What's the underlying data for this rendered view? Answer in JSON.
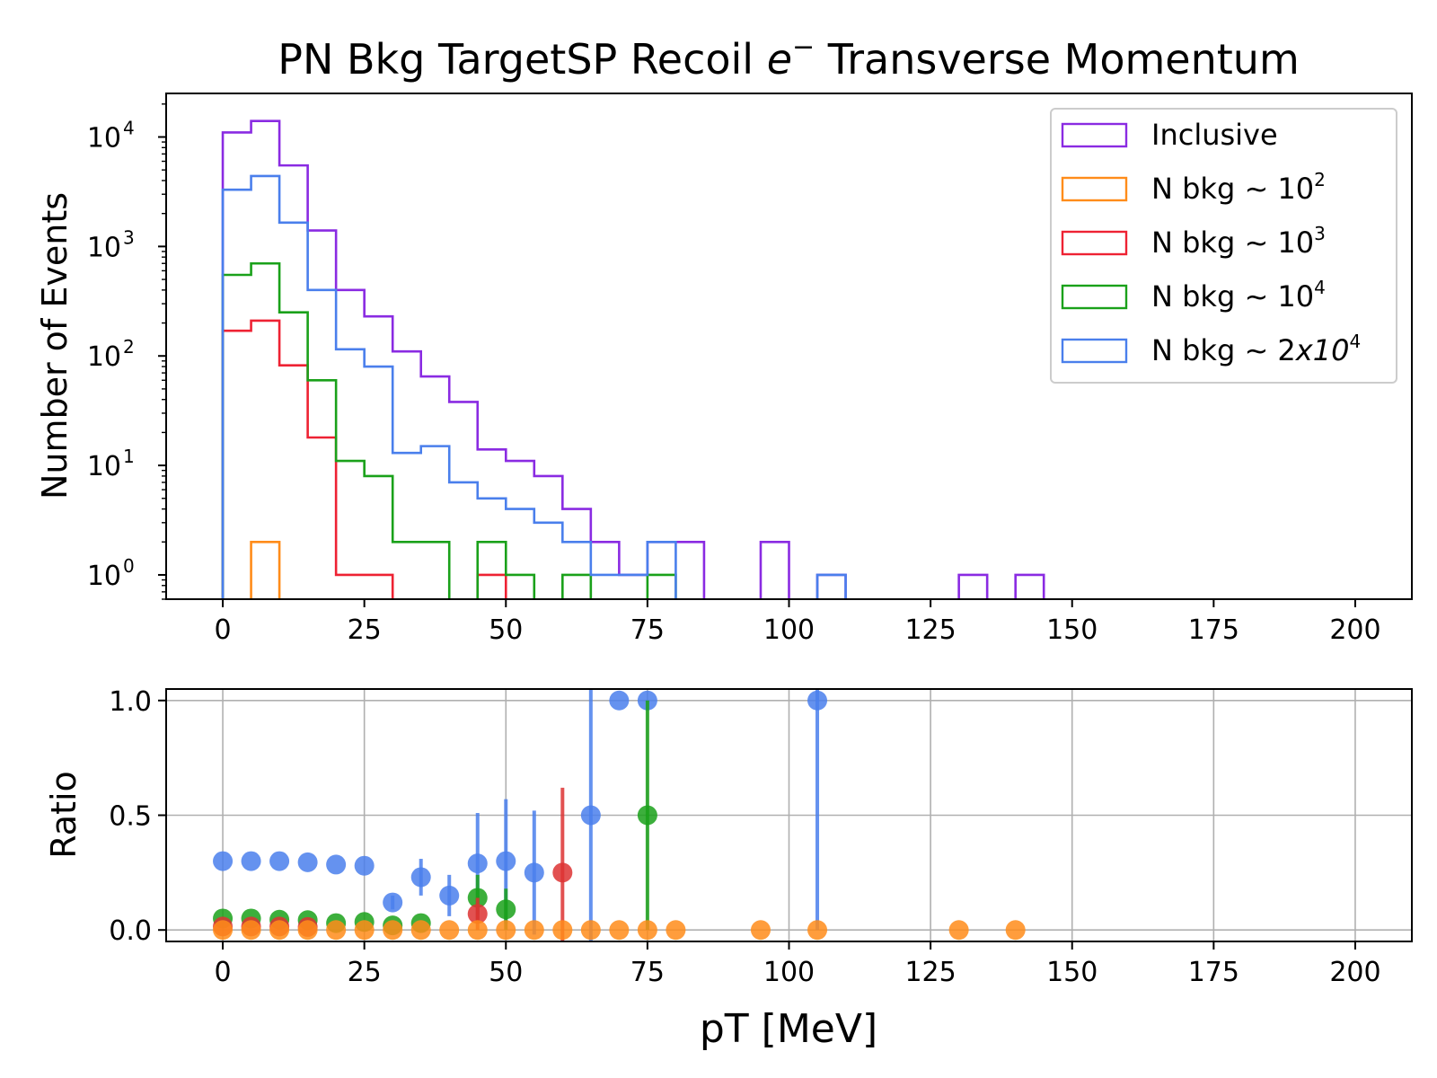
{
  "chart_data": [
    {
      "type": "histogram",
      "title_prefix": "PN Bkg TargetSP Recoil ",
      "title_symbol": "e",
      "title_sup": "−",
      "title_suffix": " Transverse Momentum",
      "xlabel": "",
      "ylabel": "Number of Events",
      "yscale": "log",
      "xlim": [
        -10,
        210
      ],
      "ylim": [
        0.6,
        25000
      ],
      "bin_width": 5,
      "x_ticks": [
        0,
        25,
        50,
        75,
        100,
        125,
        150,
        175,
        200
      ],
      "x_tick_labels": [
        "0",
        "25",
        "50",
        "75",
        "100",
        "125",
        "150",
        "175",
        "200"
      ],
      "y_ticks": [
        1,
        10,
        100,
        1000,
        10000
      ],
      "y_tick_labels": [
        {
          "base": "10",
          "exp": "0"
        },
        {
          "base": "10",
          "exp": "1"
        },
        {
          "base": "10",
          "exp": "2"
        },
        {
          "base": "10",
          "exp": "3"
        },
        {
          "base": "10",
          "exp": "4"
        }
      ],
      "legend_position": "top-right",
      "series": [
        {
          "key": "inclusive",
          "color": "#8a2be2",
          "label_text": "Inclusive",
          "label_sup": "",
          "label_tail": "",
          "bins": [
            [
              0,
              11000
            ],
            [
              5,
              14000
            ],
            [
              10,
              5500
            ],
            [
              15,
              1400
            ],
            [
              20,
              400
            ],
            [
              25,
              230
            ],
            [
              30,
              110
            ],
            [
              35,
              65
            ],
            [
              40,
              38
            ],
            [
              45,
              14
            ],
            [
              50,
              11
            ],
            [
              55,
              8
            ],
            [
              60,
              4
            ],
            [
              65,
              2
            ],
            [
              70,
              1
            ],
            [
              75,
              2
            ],
            [
              80,
              2
            ],
            [
              85,
              0
            ],
            [
              90,
              0
            ],
            [
              95,
              2
            ],
            [
              100,
              0
            ],
            [
              105,
              1
            ],
            [
              110,
              0
            ],
            [
              115,
              0
            ],
            [
              120,
              0
            ],
            [
              125,
              0
            ],
            [
              130,
              1
            ],
            [
              135,
              0
            ],
            [
              140,
              1
            ]
          ]
        },
        {
          "key": "n2",
          "color": "#ff8c1a",
          "label_text": "N bkg ~ 10",
          "label_sup": "2",
          "label_tail": "",
          "bins": [
            [
              5,
              2
            ]
          ]
        },
        {
          "key": "n3",
          "color": "#ee2233",
          "label_text": "N bkg ~ 10",
          "label_sup": "3",
          "label_tail": "",
          "bins": [
            [
              0,
              170
            ],
            [
              5,
              210
            ],
            [
              10,
              82
            ],
            [
              15,
              18
            ],
            [
              20,
              1
            ],
            [
              25,
              1
            ],
            [
              30,
              0
            ],
            [
              35,
              0
            ],
            [
              40,
              0
            ],
            [
              45,
              1
            ]
          ]
        },
        {
          "key": "n4",
          "color": "#1aa11a",
          "label_text": "N bkg ~ 10",
          "label_sup": "4",
          "label_tail": "",
          "bins": [
            [
              0,
              550
            ],
            [
              5,
              700
            ],
            [
              10,
              250
            ],
            [
              15,
              60
            ],
            [
              20,
              11
            ],
            [
              25,
              8
            ],
            [
              30,
              2
            ],
            [
              35,
              2
            ],
            [
              40,
              0
            ],
            [
              45,
              2
            ],
            [
              50,
              1
            ],
            [
              55,
              0
            ],
            [
              60,
              1
            ],
            [
              65,
              0
            ],
            [
              70,
              0
            ],
            [
              75,
              1
            ]
          ]
        },
        {
          "key": "n2x4",
          "color": "#4a7fec",
          "label_text": "N bkg ~ 2",
          "label_sup": "4",
          "label_tail": "x10",
          "bins": [
            [
              0,
              3300
            ],
            [
              5,
              4400
            ],
            [
              10,
              1650
            ],
            [
              15,
              400
            ],
            [
              20,
              115
            ],
            [
              25,
              80
            ],
            [
              30,
              13
            ],
            [
              35,
              15
            ],
            [
              40,
              7
            ],
            [
              45,
              5
            ],
            [
              50,
              4
            ],
            [
              55,
              3
            ],
            [
              60,
              2
            ],
            [
              65,
              1
            ],
            [
              70,
              1
            ],
            [
              75,
              2
            ],
            [
              80,
              0
            ],
            [
              85,
              0
            ],
            [
              90,
              0
            ],
            [
              95,
              0
            ],
            [
              100,
              0
            ],
            [
              105,
              1
            ]
          ]
        }
      ]
    },
    {
      "type": "scatter",
      "title": "",
      "xlabel": "pT [MeV]",
      "ylabel": "Ratio",
      "xlim": [
        -10,
        210
      ],
      "ylim": [
        -0.05,
        1.05
      ],
      "grid": true,
      "x_ticks": [
        0,
        25,
        50,
        75,
        100,
        125,
        150,
        175,
        200
      ],
      "x_tick_labels": [
        "0",
        "25",
        "50",
        "75",
        "100",
        "125",
        "150",
        "175",
        "200"
      ],
      "y_ticks": [
        0.0,
        0.5,
        1.0
      ],
      "y_tick_labels": [
        "0.0",
        "0.5",
        "1.0"
      ],
      "series": [
        {
          "key": "n2x4",
          "color": "#4a7fec",
          "points": [
            [
              0,
              0.3,
              0
            ],
            [
              5,
              0.3,
              0
            ],
            [
              10,
              0.3,
              0
            ],
            [
              15,
              0.295,
              0
            ],
            [
              20,
              0.285,
              0
            ],
            [
              25,
              0.28,
              0
            ],
            [
              30,
              0.12,
              0.03
            ],
            [
              35,
              0.23,
              0.08
            ],
            [
              40,
              0.15,
              0.09
            ],
            [
              45,
              0.29,
              0.22
            ],
            [
              50,
              0.3,
              0.27
            ],
            [
              55,
              0.25,
              0.27
            ],
            [
              65,
              0.5,
              0.55
            ],
            [
              70,
              1.0,
              0
            ],
            [
              75,
              1.0,
              0
            ],
            [
              105,
              1.0,
              1.0
            ]
          ]
        },
        {
          "key": "n4",
          "color": "#1aa11a",
          "points": [
            [
              0,
              0.05,
              0
            ],
            [
              5,
              0.05,
              0
            ],
            [
              10,
              0.045,
              0
            ],
            [
              15,
              0.043,
              0
            ],
            [
              20,
              0.03,
              0
            ],
            [
              25,
              0.035,
              0
            ],
            [
              30,
              0.02,
              0
            ],
            [
              35,
              0.03,
              0
            ],
            [
              45,
              0.14,
              0.1
            ],
            [
              50,
              0.09,
              0.09
            ],
            [
              75,
              0.5,
              0.5
            ]
          ]
        },
        {
          "key": "n3",
          "color": "#dd3333",
          "points": [
            [
              0,
              0.015,
              0
            ],
            [
              5,
              0.015,
              0
            ],
            [
              10,
              0.015,
              0
            ],
            [
              15,
              0.013,
              0
            ],
            [
              45,
              0.07,
              0.07
            ],
            [
              60,
              0.25,
              0.37
            ]
          ]
        },
        {
          "key": "n2",
          "color": "#ff8c1a",
          "points": [
            [
              0,
              0,
              0
            ],
            [
              5,
              0,
              0
            ],
            [
              10,
              0,
              0
            ],
            [
              15,
              0,
              0
            ],
            [
              20,
              0,
              0
            ],
            [
              25,
              0,
              0
            ],
            [
              30,
              0,
              0
            ],
            [
              35,
              0,
              0
            ],
            [
              40,
              0,
              0
            ],
            [
              45,
              0,
              0
            ],
            [
              50,
              0,
              0
            ],
            [
              55,
              0,
              0
            ],
            [
              60,
              0,
              0
            ],
            [
              65,
              0,
              0
            ],
            [
              70,
              0,
              0
            ],
            [
              75,
              0,
              0
            ],
            [
              80,
              0,
              0
            ],
            [
              95,
              0,
              0
            ],
            [
              105,
              0,
              0
            ],
            [
              130,
              0,
              0
            ],
            [
              140,
              0,
              0
            ]
          ]
        }
      ]
    }
  ]
}
